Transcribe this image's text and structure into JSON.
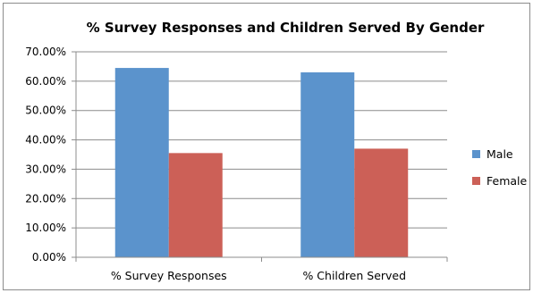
{
  "chart_data": {
    "type": "bar",
    "title": "% Survey Responses and Children Served By Gender",
    "xlabel": "",
    "ylabel": "",
    "categories": [
      "% Survey Responses",
      "% Children Served"
    ],
    "series": [
      {
        "name": "Male",
        "values": [
          64.5,
          63.0
        ],
        "color": "#5b93cc"
      },
      {
        "name": "Female",
        "values": [
          35.5,
          37.0
        ],
        "color": "#cc6057"
      }
    ],
    "ylim": [
      0,
      70
    ],
    "yticks": [
      0,
      10,
      20,
      30,
      40,
      50,
      60,
      70
    ],
    "ytick_labels": [
      "0.00%",
      "10.00%",
      "20.00%",
      "30.00%",
      "40.00%",
      "50.00%",
      "60.00%",
      "70.00%"
    ],
    "grid": true,
    "legend_position": "right"
  }
}
